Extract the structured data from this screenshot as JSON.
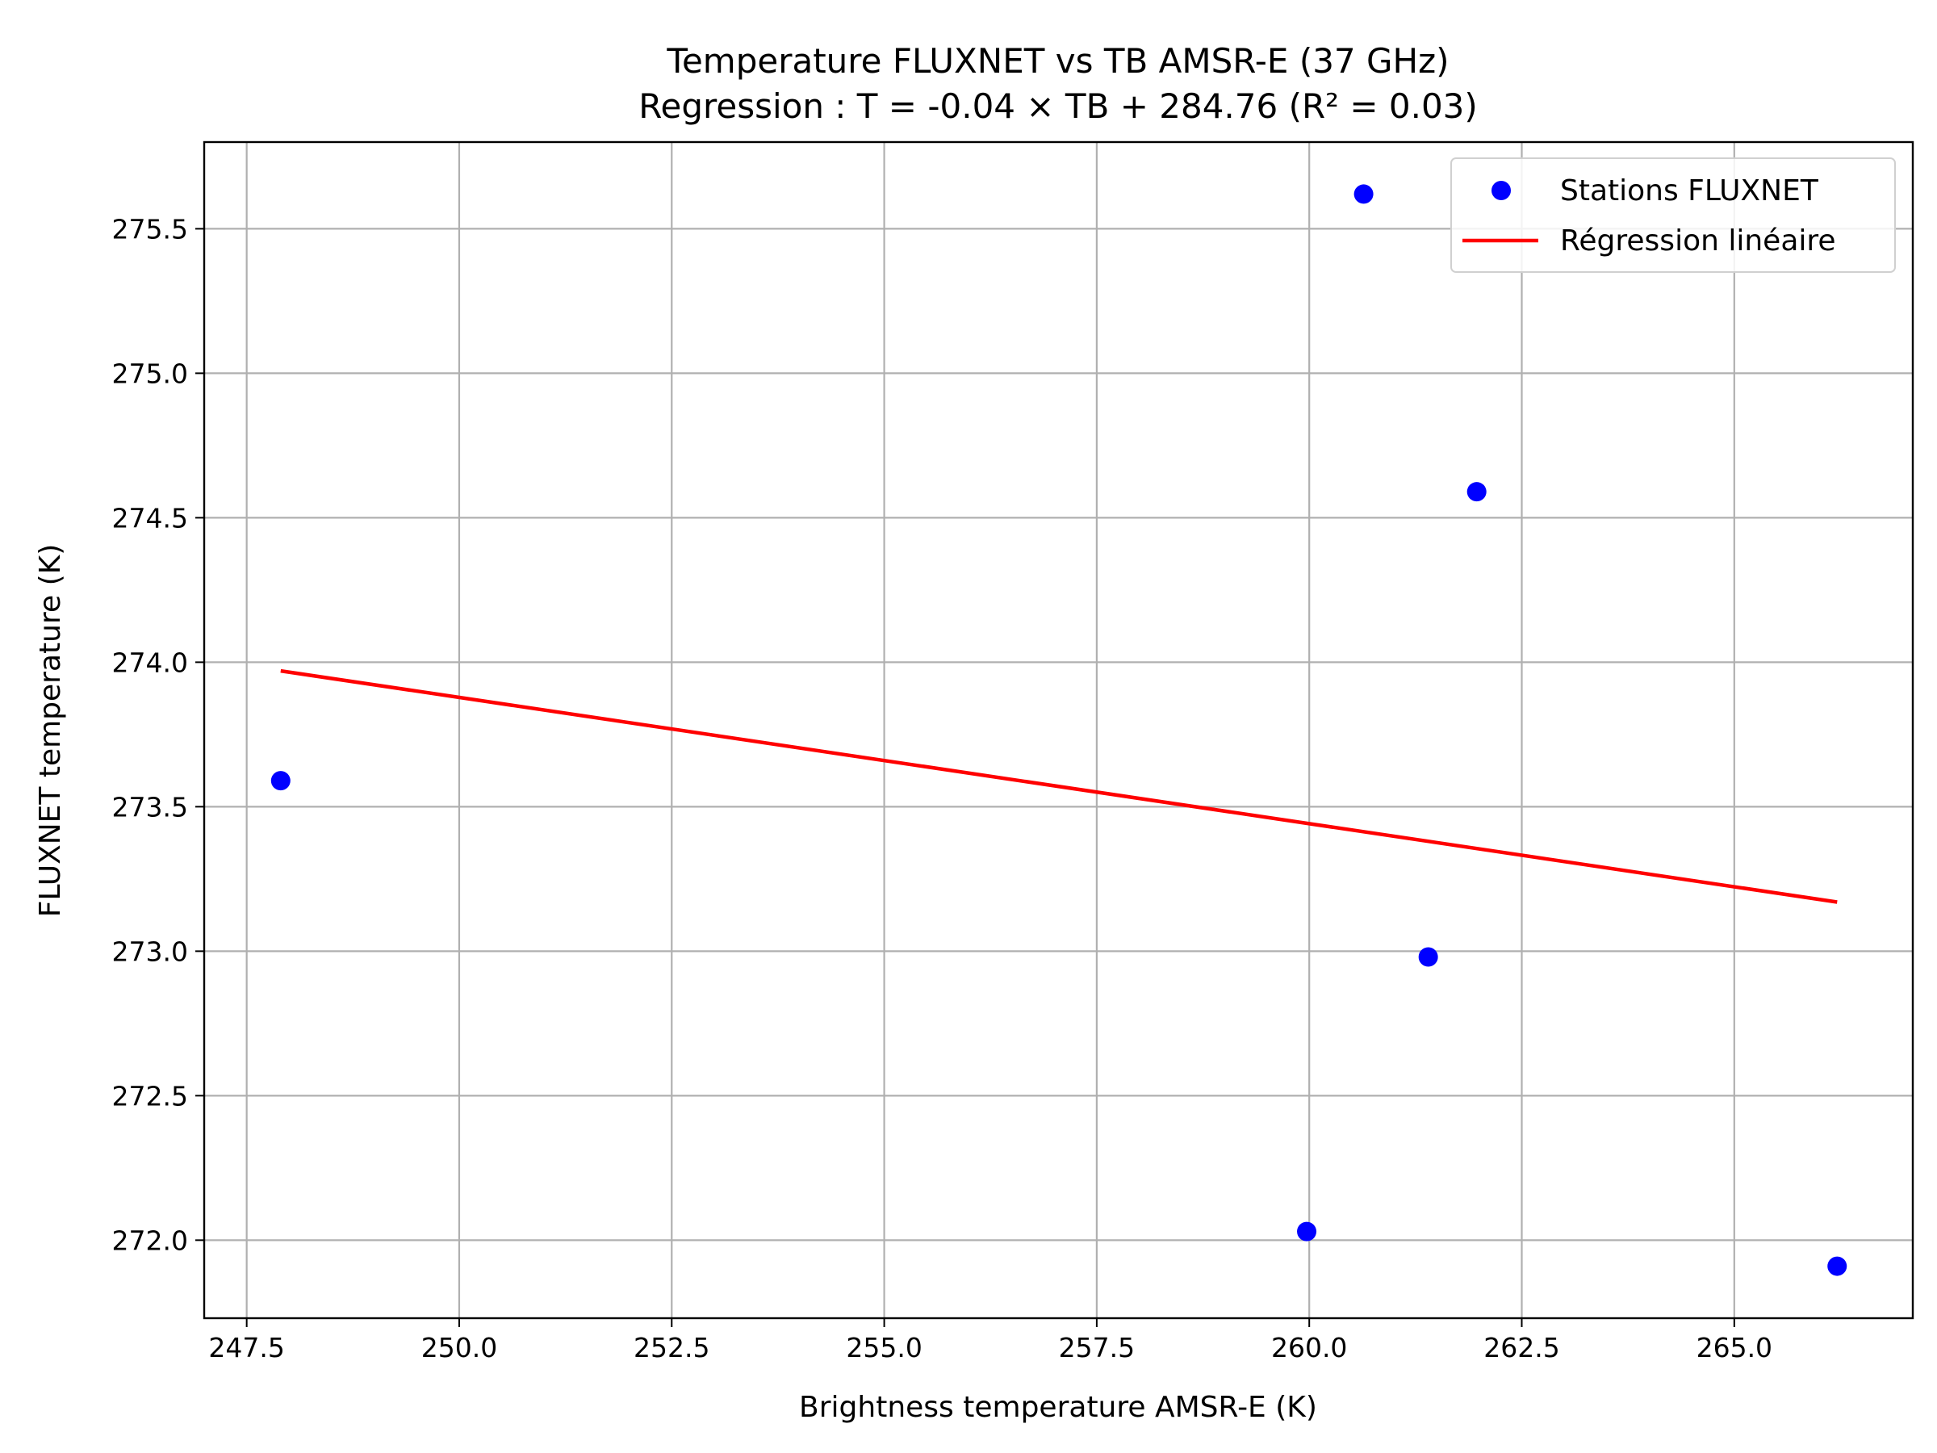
{
  "chart_data": {
    "type": "scatter",
    "title": "Temperature FLUXNET vs TB AMSR-E (37 GHz)",
    "subtitle": "Regression : T = -0.04 × TB + 284.76 (R² = 0.03)",
    "xlabel": "Brightness temperature AMSR-E (K)",
    "ylabel": "FLUXNET temperature (K)",
    "xlim": [
      247.0,
      267.1
    ],
    "ylim": [
      271.73,
      275.8
    ],
    "xticks": [
      247.5,
      250.0,
      252.5,
      255.0,
      257.5,
      260.0,
      262.5,
      265.0
    ],
    "yticks": [
      272.0,
      272.5,
      273.0,
      273.5,
      274.0,
      274.5,
      275.0,
      275.5
    ],
    "xtick_labels": [
      "247.5",
      "250.0",
      "252.5",
      "255.0",
      "257.5",
      "260.0",
      "262.5",
      "265.0"
    ],
    "ytick_labels": [
      "272.0",
      "272.5",
      "273.0",
      "273.5",
      "274.0",
      "274.5",
      "275.0",
      "275.5"
    ],
    "grid": true,
    "legend_position": "top-right",
    "series": [
      {
        "name": "Stations FLUXNET",
        "kind": "scatter",
        "color": "#0000ff",
        "x": [
          247.9,
          259.97,
          260.64,
          261.4,
          261.97,
          266.21
        ],
        "y": [
          273.59,
          272.03,
          275.62,
          272.98,
          274.59,
          271.91
        ]
      },
      {
        "name": "Régression linéaire",
        "kind": "line",
        "color": "#ff0000",
        "x": [
          247.9,
          266.21
        ],
        "y": [
          273.97,
          273.17
        ]
      }
    ]
  }
}
